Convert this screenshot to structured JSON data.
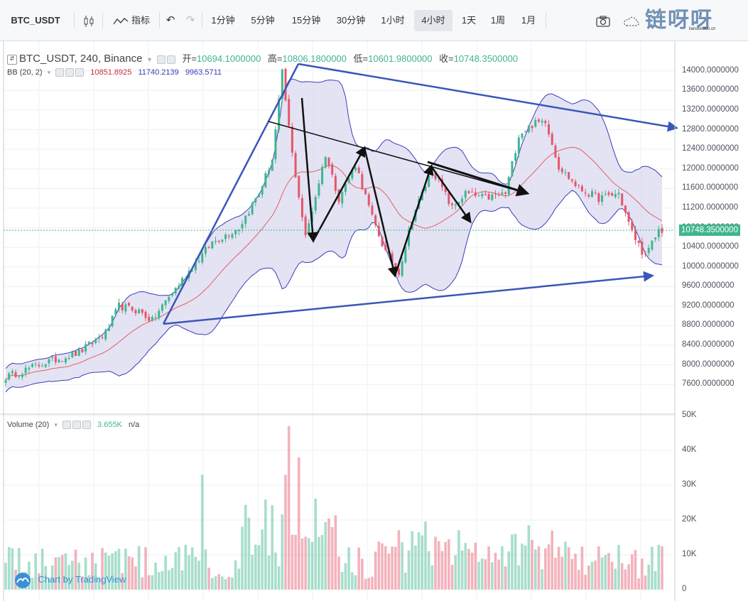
{
  "toolbar": {
    "symbol": "BTC_USDT",
    "indicators_label": "指标",
    "intervals": [
      "1分钟",
      "5分钟",
      "15分钟",
      "30分钟",
      "1小时",
      "4小时",
      "1天",
      "1周",
      "1月"
    ],
    "active_interval": "4小时",
    "watermark_text": "链呀呀",
    "watermark_url": "liandoodoo.cn"
  },
  "legend": {
    "symbol_line": "BTC_USDT, 240, Binance",
    "open_label": "开=",
    "open": "10694.1000000",
    "high_label": "高=",
    "high": "10806.1800000",
    "low_label": "低=",
    "low": "10601.9800000",
    "close_label": "收=",
    "close": "10748.3500000",
    "bb_label": "BB (20, 2)",
    "bb_mid": "10851.8925",
    "bb_upper": "11740.2139",
    "bb_lower": "9963.5711",
    "volume_label": "Volume (20)",
    "volume_value": "3.655K",
    "volume_na": "n/a"
  },
  "price_badge": "10748.3500000",
  "branding": "Chart by TradingView",
  "colors": {
    "up": "#3fb58e",
    "down": "#e5566a",
    "bb_line": "#3d3db8",
    "bb_fill": "#d9daf0",
    "ma_line": "#e36060",
    "trend_blue": "#3a56b8"
  },
  "chart_data": {
    "type": "candlestick",
    "ylim": [
      7400,
      14200
    ],
    "y_ticks": [
      "14000.0000000",
      "13600.0000000",
      "13200.0000000",
      "12800.0000000",
      "12400.0000000",
      "12000.0000000",
      "11600.0000000",
      "11200.0000000",
      "10800.0000000",
      "10400.0000000",
      "10000.0000000",
      "9600.0000000",
      "9200.0000000",
      "8800.0000000",
      "8400.0000000",
      "8000.0000000",
      "7600.0000000"
    ],
    "volume_ticks": [
      "50K",
      "40K",
      "30K",
      "20K",
      "10K",
      "0"
    ],
    "volume_ylim": [
      0,
      50000
    ],
    "close_path_keypoints": [
      [
        0,
        7750
      ],
      [
        12,
        8050
      ],
      [
        22,
        8250
      ],
      [
        30,
        8650
      ],
      [
        34,
        9200
      ],
      [
        40,
        9100
      ],
      [
        44,
        8900
      ],
      [
        48,
        9300
      ],
      [
        56,
        10000
      ],
      [
        62,
        10500
      ],
      [
        70,
        10800
      ],
      [
        76,
        11500
      ],
      [
        80,
        12200
      ],
      [
        83,
        13950
      ],
      [
        86,
        12300
      ],
      [
        90,
        10600
      ],
      [
        96,
        12300
      ],
      [
        100,
        11400
      ],
      [
        105,
        12100
      ],
      [
        110,
        11000
      ],
      [
        114,
        10300
      ],
      [
        118,
        9900
      ],
      [
        122,
        11000
      ],
      [
        128,
        12000
      ],
      [
        134,
        11200
      ],
      [
        138,
        11500
      ],
      [
        144,
        11400
      ],
      [
        150,
        11500
      ],
      [
        154,
        12700
      ],
      [
        158,
        12900
      ],
      [
        162,
        13000
      ],
      [
        166,
        12050
      ],
      [
        172,
        11600
      ],
      [
        178,
        11400
      ],
      [
        184,
        11500
      ],
      [
        188,
        10700
      ],
      [
        192,
        10200
      ],
      [
        196,
        10750
      ]
    ]
  }
}
